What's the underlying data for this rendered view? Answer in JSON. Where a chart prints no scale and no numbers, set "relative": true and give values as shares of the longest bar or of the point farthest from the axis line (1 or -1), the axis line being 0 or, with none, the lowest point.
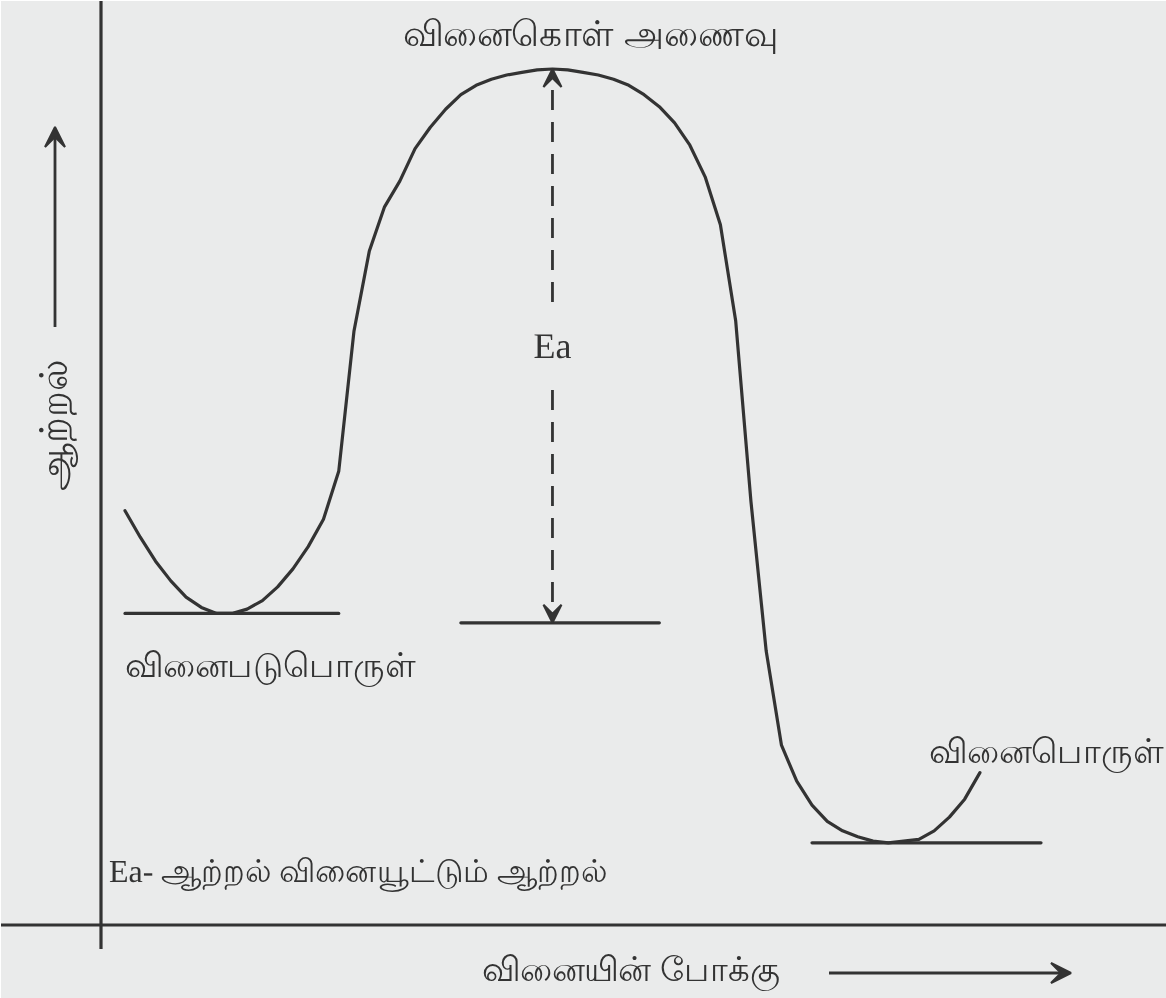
{
  "chart_data": {
    "type": "line",
    "relative": true,
    "xlabel": "வினையின் போக்கு",
    "ylabel": "ஆற்றல்",
    "categories": [
      null,
      null,
      null,
      null,
      null,
      null,
      null,
      null,
      null,
      null,
      null,
      null,
      null,
      null,
      null,
      null,
      null,
      null,
      null,
      null,
      null,
      null,
      null,
      null,
      null,
      null,
      null,
      null,
      null,
      null,
      null,
      null,
      null,
      null,
      null,
      null,
      null,
      null,
      null,
      null,
      null,
      null,
      null,
      null,
      null,
      null,
      null,
      null,
      null,
      null,
      null,
      null,
      null,
      null,
      null,
      null,
      null,
      null,
      null,
      null,
      null
    ],
    "series": [
      {
        "color": "#333333",
        "values": [
          0.484,
          0.453,
          0.425,
          0.402,
          0.383,
          0.371,
          0.364,
          0.364,
          0.369,
          0.379,
          0.395,
          0.416,
          0.442,
          0.474,
          0.53,
          0.694,
          0.787,
          0.839,
          0.869,
          0.907,
          0.932,
          0.953,
          0.97,
          0.981,
          0.988,
          0.993,
          0.996,
          0.999,
          1,
          0.999,
          0.996,
          0.993,
          0.988,
          0.981,
          0.97,
          0.956,
          0.937,
          0.911,
          0.874,
          0.818,
          0.706,
          0.495,
          0.32,
          0.21,
          0.168,
          0.14,
          0.121,
          0.11,
          0.103,
          0.098,
          0.096,
          0.098,
          0.1,
          0.11,
          0.126,
          0.147,
          0.178,
          null,
          null,
          null,
          null
        ]
      },
      {
        "name": "வினைபடுபொருள்",
        "color": "#333333",
        "values": [
          0.364,
          0.364,
          0.364,
          0.364,
          0.364,
          0.364,
          0.364,
          0.364,
          0.364,
          0.364,
          0.364,
          0.364,
          0.364,
          0.364,
          0.364,
          null,
          null,
          null,
          null,
          null,
          null,
          null,
          null,
          null,
          null,
          null,
          null,
          null,
          null,
          null,
          null,
          null,
          null,
          null,
          null,
          null,
          null,
          null,
          null,
          null,
          null,
          null,
          null,
          null,
          null,
          null,
          null,
          null,
          null,
          null,
          null,
          null,
          null,
          null,
          null,
          null,
          null,
          null,
          null,
          null,
          null
        ]
      },
      {
        "color": "#333333",
        "values": [
          null,
          null,
          null,
          null,
          null,
          null,
          null,
          null,
          null,
          null,
          null,
          null,
          null,
          null,
          null,
          null,
          null,
          null,
          null,
          null,
          null,
          null,
          0.353,
          0.353,
          0.353,
          0.353,
          0.353,
          0.353,
          0.353,
          0.353,
          0.353,
          0.353,
          0.353,
          0.353,
          0.353,
          0.353,
          null,
          null,
          null,
          null,
          null,
          null,
          null,
          null,
          null,
          null,
          null,
          null,
          null,
          null,
          null,
          null,
          null,
          null,
          null,
          null,
          null,
          null,
          null,
          null,
          null
        ]
      },
      {
        "name": "வினைபொருள்",
        "color": "#333333",
        "values": [
          null,
          null,
          null,
          null,
          null,
          null,
          null,
          null,
          null,
          null,
          null,
          null,
          null,
          null,
          null,
          null,
          null,
          null,
          null,
          null,
          null,
          null,
          null,
          null,
          null,
          null,
          null,
          null,
          null,
          null,
          null,
          null,
          null,
          null,
          null,
          null,
          null,
          null,
          null,
          null,
          null,
          null,
          null,
          null,
          null,
          0.096,
          0.096,
          0.096,
          0.096,
          0.096,
          0.096,
          0.096,
          0.096,
          0.096,
          0.096,
          0.096,
          0.096,
          0.096,
          0.096,
          0.096,
          0.096
        ]
      }
    ],
    "annotations": [
      {
        "text": "வினைகொள் அணைவு",
        "y": 1
      },
      "Ea",
      "Ea- ஆற்றல் வினையூட்டும் ஆற்றல்"
    ]
  }
}
